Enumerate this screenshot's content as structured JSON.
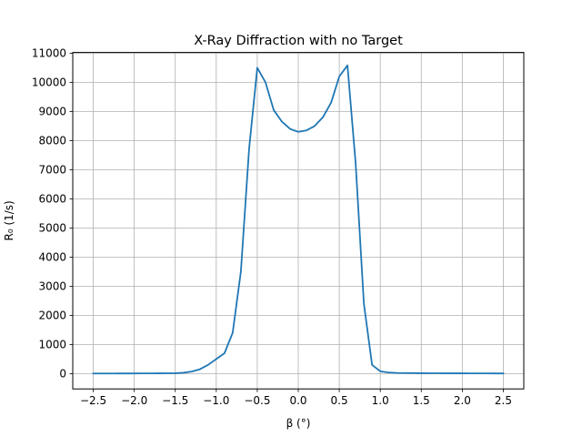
{
  "chart_data": {
    "type": "line",
    "title": "X-Ray Diffraction with no Target",
    "xlabel": "β   (°)",
    "ylabel": "R₀   (1/s)",
    "xlim": [
      -2.75,
      2.75
    ],
    "ylim": [
      -525,
      11025
    ],
    "grid": true,
    "x_ticks": [
      -2.5,
      -2.0,
      -1.5,
      -1.0,
      -0.5,
      0.0,
      0.5,
      1.0,
      1.5,
      2.0,
      2.5
    ],
    "x_tick_labels": [
      "−2.5",
      "−2.0",
      "−1.5",
      "−1.0",
      "−0.5",
      "0.0",
      "0.5",
      "1.0",
      "1.5",
      "2.0",
      "2.5"
    ],
    "y_ticks": [
      0,
      1000,
      2000,
      3000,
      4000,
      5000,
      6000,
      7000,
      8000,
      9000,
      10000,
      11000
    ],
    "y_tick_labels": [
      "0",
      "1000",
      "2000",
      "3000",
      "4000",
      "5000",
      "6000",
      "7000",
      "8000",
      "9000",
      "10000",
      "11000"
    ],
    "series": [
      {
        "color": "#1f77b4",
        "x": [
          -2.5,
          -2.4,
          -2.3,
          -2.2,
          -2.1,
          -2.0,
          -1.9,
          -1.8,
          -1.7,
          -1.6,
          -1.5,
          -1.4,
          -1.3,
          -1.2,
          -1.1,
          -1.0,
          -0.9,
          -0.8,
          -0.7,
          -0.6,
          -0.5,
          -0.4,
          -0.3,
          -0.2,
          -0.1,
          0.0,
          0.1,
          0.2,
          0.3,
          0.4,
          0.5,
          0.6,
          0.7,
          0.8,
          0.9,
          1.0,
          1.1,
          1.2,
          1.3,
          1.4,
          1.5,
          1.6,
          1.7,
          1.8,
          1.9,
          2.0,
          2.1,
          2.2,
          2.3,
          2.4,
          2.5
        ],
        "y": [
          5,
          5,
          5,
          6,
          6,
          7,
          8,
          9,
          10,
          12,
          15,
          30,
          70,
          150,
          300,
          500,
          700,
          1400,
          3500,
          7700,
          10500,
          10000,
          9050,
          8650,
          8400,
          8300,
          8350,
          8500,
          8800,
          9300,
          10200,
          10580,
          7200,
          2400,
          300,
          80,
          40,
          25,
          20,
          18,
          15,
          13,
          12,
          11,
          10,
          10,
          9,
          8,
          8,
          7,
          7
        ]
      }
    ]
  }
}
